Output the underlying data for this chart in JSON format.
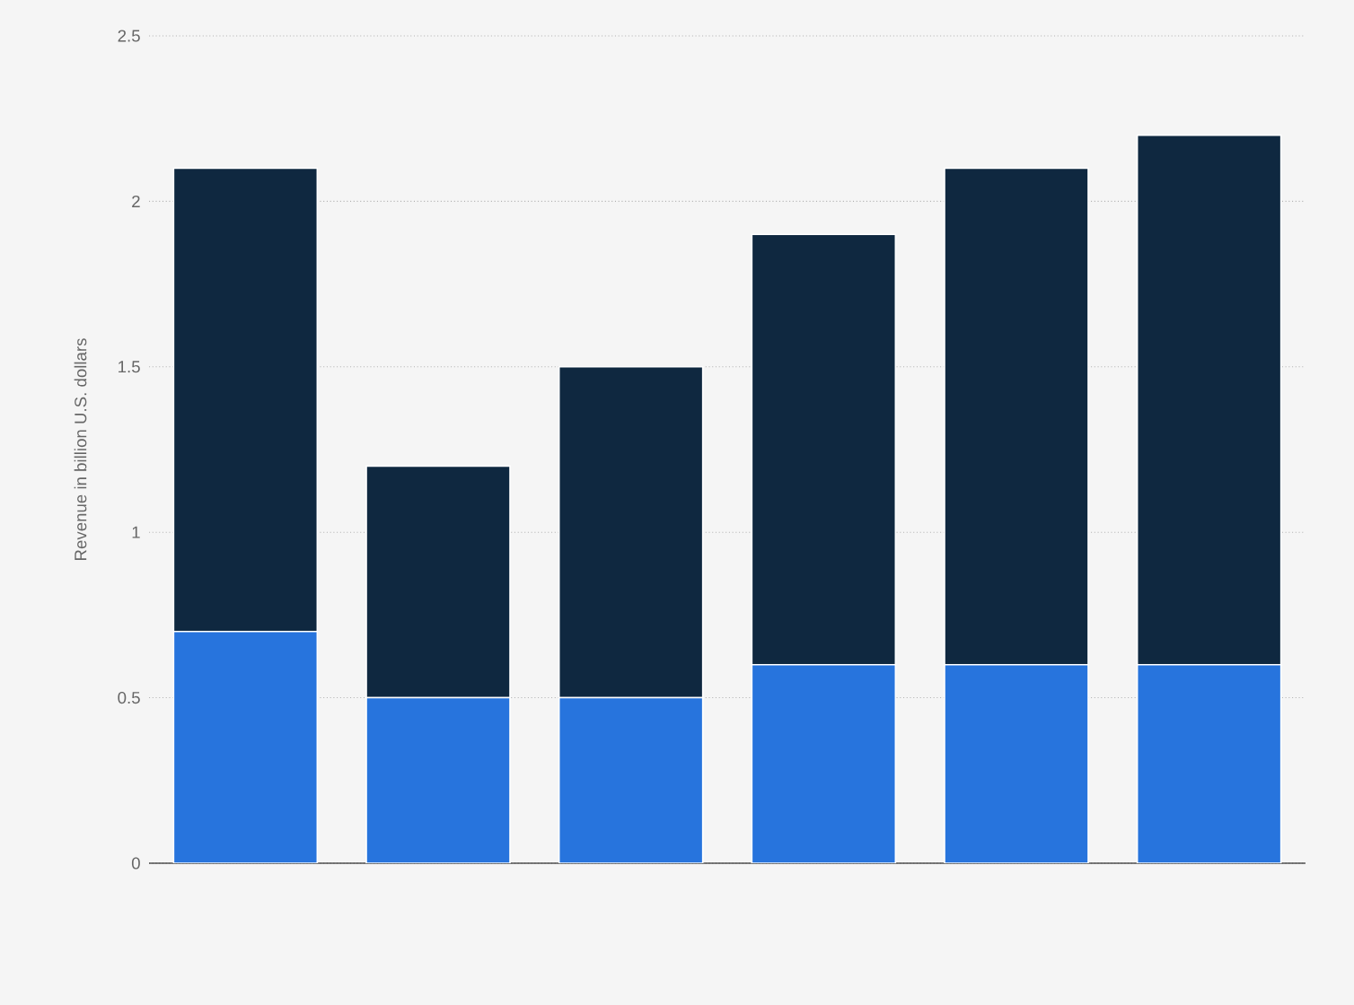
{
  "chart_data": {
    "type": "bar",
    "stacked": true,
    "ylabel": "Revenue in billion U.S. dollars",
    "categories": [
      null,
      null,
      null,
      null,
      null,
      null
    ],
    "series": [
      {
        "color": "#2774dd",
        "values": [
          0.7,
          0.5,
          0.5,
          0.6,
          0.6,
          0.6
        ]
      },
      {
        "color": "#0f2840",
        "values": [
          1.4,
          0.7,
          1.0,
          1.3,
          1.5,
          1.6
        ]
      }
    ],
    "ylim": [
      0,
      2.5
    ],
    "yticks": [
      0,
      0.5,
      1,
      1.5,
      2,
      2.5
    ],
    "grid": "y",
    "tick_labels": "y"
  }
}
